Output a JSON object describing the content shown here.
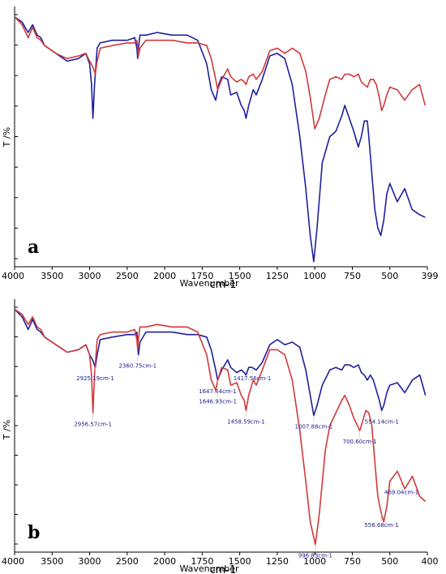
{
  "chart_data": [
    {
      "type": "line",
      "panel": "a",
      "xlabel": "Wavenumber",
      "xlabel_unit": "cm-1",
      "ylabel": "T /%",
      "xlim": [
        4000,
        399
      ],
      "x_ticks": [
        4000,
        3500,
        3000,
        2500,
        2000,
        1750,
        1500,
        1250,
        1000,
        750,
        500,
        399
      ],
      "x_tick_labels": [
        "4000",
        "3500",
        "3000",
        "2500",
        "2000",
        "1750",
        "1500",
        "1250",
        "1000",
        "750",
        "500",
        "399"
      ],
      "ylim": [
        0,
        100
      ],
      "y_ticks_count": 9,
      "colors": {
        "series_blue": "#1f1f9e",
        "series_red": "#d03a3a"
      },
      "series": [
        {
          "color": "#1f1f9e",
          "x": [
            4000,
            3900,
            3820,
            3760,
            3700,
            3650,
            3600,
            3450,
            3300,
            3150,
            3050,
            3000,
            2975,
            2956,
            2935,
            2900,
            2860,
            2700,
            2500,
            2400,
            2370,
            2360,
            2350,
            2330,
            2250,
            2100,
            1950,
            1850,
            1780,
            1720,
            1690,
            1660,
            1640,
            1620,
            1580,
            1560,
            1520,
            1490,
            1470,
            1458,
            1440,
            1410,
            1390,
            1350,
            1300,
            1250,
            1200,
            1150,
            1100,
            1060,
            1030,
            1007,
            985,
            950,
            900,
            860,
            820,
            800,
            770,
            740,
            710,
            690,
            670,
            650,
            640,
            620,
            600,
            580,
            560,
            540,
            520,
            500,
            480,
            460,
            440,
            420,
            405
          ],
          "y": [
            96,
            94,
            90,
            93,
            89,
            88,
            85,
            82,
            79,
            80,
            82,
            78,
            70,
            57,
            70,
            84,
            86,
            87,
            87,
            88,
            84,
            80,
            84,
            89,
            89,
            90,
            89,
            89,
            87,
            78,
            68,
            64,
            70,
            73,
            72,
            66,
            67,
            62,
            60,
            57,
            62,
            68,
            66,
            72,
            81,
            82,
            80,
            70,
            50,
            30,
            12,
            2,
            15,
            40,
            50,
            52,
            58,
            62,
            57,
            52,
            46,
            50,
            56,
            56,
            50,
            36,
            22,
            15,
            12,
            18,
            28,
            32,
            25,
            30,
            22,
            20,
            19
          ]
        },
        {
          "color": "#d03a3a",
          "x": [
            4000,
            3900,
            3820,
            3760,
            3700,
            3650,
            3600,
            3450,
            3300,
            3150,
            3050,
            3000,
            2960,
            2925,
            2900,
            2860,
            2700,
            2500,
            2400,
            2370,
            2360,
            2350,
            2330,
            2250,
            2100,
            1950,
            1850,
            1780,
            1720,
            1690,
            1660,
            1647,
            1620,
            1580,
            1560,
            1520,
            1490,
            1470,
            1458,
            1440,
            1410,
            1390,
            1350,
            1300,
            1250,
            1200,
            1150,
            1100,
            1060,
            1030,
            1000,
            970,
            930,
            900,
            860,
            820,
            800,
            770,
            740,
            710,
            690,
            670,
            650,
            630,
            610,
            590,
            570,
            554,
            540,
            520,
            500,
            480,
            460,
            440,
            420,
            405
          ],
          "y": [
            96,
            93,
            88,
            92,
            88,
            87,
            85,
            82,
            80,
            81,
            82,
            79,
            77,
            74,
            79,
            84,
            85,
            86,
            86,
            87,
            84,
            81,
            84,
            87,
            87,
            87,
            86,
            86,
            85,
            80,
            72,
            68,
            72,
            76,
            73,
            71,
            72,
            71,
            70,
            73,
            74,
            72,
            75,
            83,
            84,
            82,
            84,
            82,
            75,
            65,
            53,
            57,
            66,
            72,
            73,
            72,
            74,
            74,
            73,
            74,
            71,
            70,
            69,
            72,
            72,
            70,
            65,
            60,
            62,
            66,
            69,
            68,
            64,
            68,
            70,
            62
          ]
        }
      ]
    },
    {
      "type": "line",
      "panel": "b",
      "xlabel": "Wavenumber",
      "xlabel_unit": "cm-1",
      "ylabel": "T /%",
      "xlim": [
        4000,
        400
      ],
      "x_ticks": [
        4000,
        3500,
        3000,
        2500,
        2000,
        1750,
        1500,
        1250,
        1000,
        750,
        500,
        400
      ],
      "x_tick_labels": [
        "4000",
        "3500",
        "3000",
        "2500",
        "2000",
        "1750",
        "1500",
        "1250",
        "1000",
        "750",
        "500",
        "400"
      ],
      "ylim": [
        0,
        100
      ],
      "y_ticks_count": 9,
      "colors": {
        "series_blue": "#1f1f9e",
        "series_red": "#d03a3a"
      },
      "series": [
        {
          "color": "#1f1f9e",
          "x": [
            4000,
            3900,
            3820,
            3760,
            3700,
            3650,
            3600,
            3450,
            3300,
            3150,
            3050,
            3000,
            2960,
            2925,
            2900,
            2860,
            2700,
            2500,
            2400,
            2370,
            2360,
            2350,
            2330,
            2250,
            2100,
            1950,
            1850,
            1780,
            1720,
            1690,
            1660,
            1647,
            1620,
            1580,
            1560,
            1520,
            1490,
            1470,
            1458,
            1440,
            1417,
            1390,
            1350,
            1300,
            1250,
            1200,
            1150,
            1100,
            1060,
            1030,
            1007,
            985,
            950,
            900,
            860,
            820,
            800,
            770,
            740,
            710,
            690,
            670,
            650,
            630,
            610,
            590,
            570,
            554,
            540,
            520,
            500,
            480,
            460,
            440,
            420,
            405
          ],
          "y": [
            96,
            93,
            88,
            92,
            88,
            87,
            85,
            82,
            79,
            80,
            82,
            78,
            76,
            73,
            78,
            84,
            85,
            86,
            86,
            87,
            82,
            78,
            83,
            87,
            87,
            87,
            86,
            86,
            85,
            80,
            72,
            68,
            72,
            76,
            73,
            71,
            72,
            71,
            70,
            73,
            73,
            72,
            75,
            82,
            84,
            82,
            83,
            81,
            72,
            62,
            54,
            58,
            66,
            72,
            73,
            72,
            74,
            74,
            73,
            74,
            71,
            70,
            68,
            70,
            68,
            64,
            60,
            56,
            58,
            63,
            66,
            67,
            63,
            68,
            70,
            62
          ]
        },
        {
          "color": "#d03a3a",
          "x": [
            4000,
            3900,
            3820,
            3760,
            3700,
            3650,
            3600,
            3450,
            3300,
            3150,
            3050,
            3000,
            2975,
            2956,
            2935,
            2900,
            2860,
            2700,
            2500,
            2400,
            2370,
            2360,
            2350,
            2330,
            2250,
            2100,
            1950,
            1850,
            1780,
            1720,
            1690,
            1660,
            1646,
            1620,
            1580,
            1560,
            1520,
            1490,
            1470,
            1458,
            1440,
            1410,
            1390,
            1350,
            1300,
            1250,
            1200,
            1150,
            1100,
            1060,
            1030,
            996,
            970,
            930,
            900,
            860,
            820,
            800,
            770,
            740,
            700,
            680,
            660,
            640,
            620,
            600,
            580,
            556,
            540,
            520,
            500,
            480,
            460,
            440,
            420,
            405
          ],
          "y": [
            96,
            94,
            90,
            93,
            89,
            88,
            85,
            82,
            79,
            80,
            82,
            78,
            70,
            55,
            70,
            84,
            86,
            87,
            87,
            88,
            84,
            80,
            84,
            89,
            89,
            90,
            89,
            89,
            87,
            78,
            68,
            64,
            68,
            73,
            72,
            66,
            67,
            62,
            60,
            56,
            62,
            68,
            66,
            72,
            80,
            80,
            78,
            68,
            48,
            28,
            12,
            3,
            15,
            40,
            50,
            55,
            60,
            62,
            58,
            53,
            48,
            52,
            56,
            55,
            50,
            36,
            22,
            15,
            12,
            18,
            28,
            32,
            25,
            30,
            22,
            20
          ]
        }
      ],
      "annotations": [
        {
          "text": "2925.19cm-1",
          "x": 2925,
          "y": 73
        },
        {
          "text": "2956.57cm-1",
          "x": 2956,
          "y": 55
        },
        {
          "text": "2360.75cm-1",
          "x": 2360,
          "y": 78
        },
        {
          "text": "1647.44cm-1",
          "x": 1647,
          "y": 68
        },
        {
          "text": "1646.93cm-1",
          "x": 1646,
          "y": 64
        },
        {
          "text": "1417.56cm-1",
          "x": 1417,
          "y": 73
        },
        {
          "text": "1458.59cm-1",
          "x": 1458,
          "y": 56
        },
        {
          "text": "1007.88cm-1",
          "x": 1007,
          "y": 54
        },
        {
          "text": "996.83cm-1",
          "x": 996,
          "y": 3
        },
        {
          "text": "700.60cm-1",
          "x": 700,
          "y": 48
        },
        {
          "text": "554.14cm-1",
          "x": 554,
          "y": 56
        },
        {
          "text": "556.68cm-1",
          "x": 556,
          "y": 15
        },
        {
          "text": "469.04cm-1",
          "x": 469,
          "y": 28
        }
      ]
    }
  ]
}
